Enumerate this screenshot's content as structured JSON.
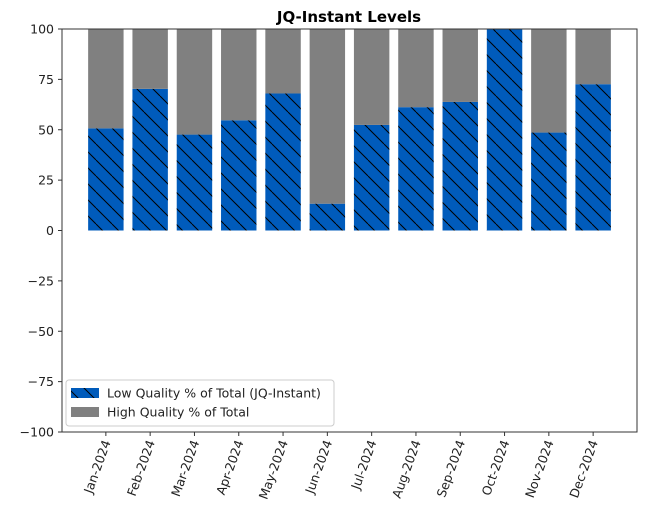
{
  "chart_data": {
    "type": "bar",
    "stacked": true,
    "title": "JQ-Instant Levels",
    "xlabel": "",
    "ylabel": "",
    "ylim": [
      -100,
      100
    ],
    "yticks": [
      100,
      75,
      50,
      25,
      0,
      -25,
      -50,
      -75,
      -100
    ],
    "grid": false,
    "legend_position": "bottom-left",
    "categories": [
      "Jan-2024",
      "Feb-2024",
      "Mar-2024",
      "Apr-2024",
      "May-2024",
      "Jun-2024",
      "Jul-2024",
      "Aug-2024",
      "Sep-2024",
      "Oct-2024",
      "Nov-2024",
      "Dec-2024"
    ],
    "series": [
      {
        "name": "Low Quality % of Total (JQ-Instant)",
        "color": "#005bbb",
        "hatch": "\\",
        "values": [
          50.7,
          70.3,
          47.6,
          54.7,
          68.0,
          13.3,
          52.4,
          61.2,
          63.8,
          100.0,
          48.6,
          72.6
        ]
      },
      {
        "name": "High Quality % of Total",
        "color": "#808080",
        "values": [
          49.3,
          29.7,
          52.4,
          45.3,
          32.0,
          86.7,
          47.6,
          38.8,
          36.2,
          0.0,
          51.4,
          27.4
        ]
      }
    ]
  }
}
